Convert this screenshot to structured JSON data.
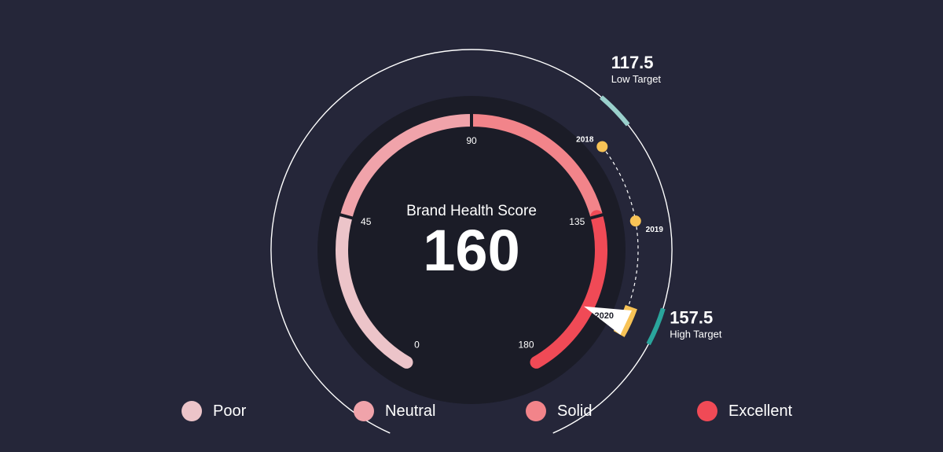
{
  "chart_data": {
    "type": "gauge",
    "title": "Brand Health Score",
    "value": 160,
    "min": 0,
    "max": 180,
    "ticks": [
      0,
      45,
      90,
      135,
      180
    ],
    "bands": [
      {
        "name": "Poor",
        "from": 0,
        "to": 45,
        "color": "#ecc4c9"
      },
      {
        "name": "Neutral",
        "from": 45,
        "to": 90,
        "color": "#f0a3aa"
      },
      {
        "name": "Solid",
        "from": 90,
        "to": 135,
        "color": "#f2848a"
      },
      {
        "name": "Excellent",
        "from": 135,
        "to": 180,
        "color": "#f04a56"
      }
    ],
    "targets": [
      {
        "value": "117.5",
        "label": "Low Target",
        "color": "#9ad0cc"
      },
      {
        "value": "157.5",
        "label": "High Target",
        "color": "#2aa59c"
      }
    ],
    "history": [
      {
        "year": "2018",
        "value": 121
      },
      {
        "year": "2019",
        "value": 138
      },
      {
        "year": "2020",
        "value": 160
      }
    ],
    "current_year": "2020",
    "marker_color": "#f8c356"
  },
  "legend": [
    {
      "label": "Poor",
      "color": "#ecc4c9"
    },
    {
      "label": "Neutral",
      "color": "#f0a3aa"
    },
    {
      "label": "Solid",
      "color": "#f2848a"
    },
    {
      "label": "Excellent",
      "color": "#f04a56"
    }
  ]
}
